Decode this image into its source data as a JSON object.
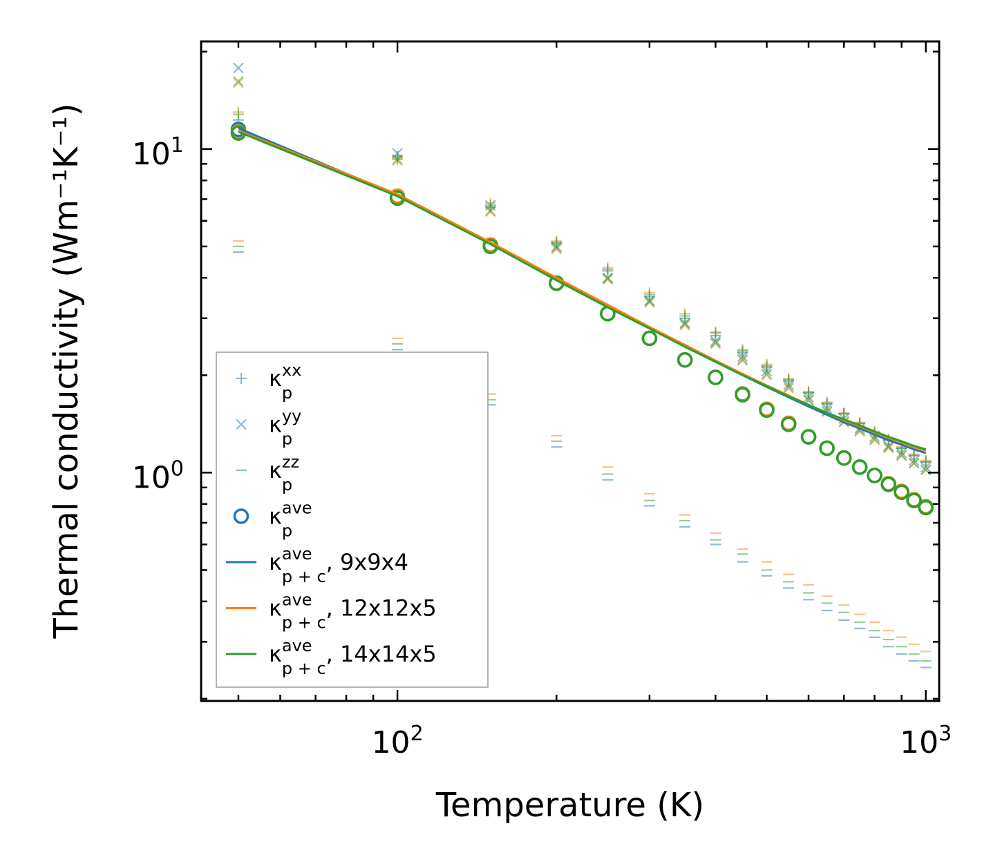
{
  "chart_data": {
    "type": "scatter",
    "title": "",
    "xlabel": "Temperature (K)",
    "ylabel": "Thermal conductivity (Wm⁻¹K⁻¹)",
    "xscale": "log",
    "yscale": "log",
    "xlim": [
      42.5,
      1060
    ],
    "ylim": [
      0.197,
      21.5
    ],
    "grid": false,
    "x_tick_labels": [
      "10",
      "10"
    ],
    "x_tick_exponents": [
      "2",
      "3"
    ],
    "y_tick_labels": [
      "10",
      "10"
    ],
    "y_tick_exponents": [
      "0",
      "1"
    ],
    "x": [
      50,
      100,
      150,
      200,
      250,
      300,
      350,
      400,
      450,
      500,
      550,
      600,
      650,
      700,
      750,
      800,
      850,
      900,
      950,
      1000
    ],
    "colors": {
      "9x9x4": "#1f77b4",
      "12x12x5": "#ff7f0e",
      "14x14x5": "#2ca02c"
    },
    "meshes": [
      {
        "name": "9x9x4",
        "color": "#1f77b4",
        "kxx": [
          12.3,
          9.5,
          6.6,
          5.1,
          4.2,
          3.5,
          3.0,
          2.65,
          2.35,
          2.12,
          1.92,
          1.76,
          1.63,
          1.52,
          1.42,
          1.33,
          1.26,
          1.19,
          1.13,
          1.08
        ],
        "kyy": [
          17.8,
          9.7,
          6.7,
          5.0,
          4.0,
          3.4,
          2.9,
          2.55,
          2.28,
          2.06,
          1.87,
          1.71,
          1.58,
          1.47,
          1.37,
          1.29,
          1.21,
          1.15,
          1.09,
          1.04
        ],
        "kzz": [
          4.8,
          2.4,
          1.62,
          1.2,
          0.95,
          0.79,
          0.68,
          0.6,
          0.53,
          0.48,
          0.44,
          0.405,
          0.375,
          0.35,
          0.33,
          0.31,
          0.29,
          0.275,
          0.262,
          0.25
        ],
        "kave": [
          11.5,
          7.1,
          5.05,
          3.85,
          3.1,
          2.6,
          2.23,
          1.97,
          1.75,
          1.57,
          1.42,
          1.29,
          1.19,
          1.11,
          1.04,
          0.98,
          0.92,
          0.87,
          0.82,
          0.78
        ],
        "kpc_ave": [
          11.6,
          7.2,
          5.1,
          3.95,
          3.25,
          2.8,
          2.45,
          2.2,
          2.0,
          1.84,
          1.71,
          1.6,
          1.51,
          1.43,
          1.37,
          1.31,
          1.26,
          1.22,
          1.18,
          1.15
        ]
      },
      {
        "name": "12x12x5",
        "color": "#ff7f0e",
        "kxx": [
          13.0,
          9.4,
          6.8,
          5.2,
          4.3,
          3.6,
          3.1,
          2.72,
          2.4,
          2.16,
          1.95,
          1.78,
          1.65,
          1.53,
          1.43,
          1.34,
          1.27,
          1.2,
          1.14,
          1.09
        ],
        "kyy": [
          16.0,
          9.2,
          6.4,
          4.9,
          3.95,
          3.35,
          2.85,
          2.5,
          2.22,
          2.0,
          1.82,
          1.67,
          1.54,
          1.43,
          1.34,
          1.26,
          1.19,
          1.13,
          1.07,
          1.02
        ],
        "kzz": [
          5.2,
          2.6,
          1.75,
          1.3,
          1.04,
          0.86,
          0.74,
          0.65,
          0.58,
          0.53,
          0.485,
          0.45,
          0.415,
          0.39,
          0.365,
          0.345,
          0.325,
          0.31,
          0.295,
          0.28
        ],
        "kave": [
          11.3,
          7.15,
          5.05,
          3.85,
          3.1,
          2.6,
          2.23,
          1.97,
          1.75,
          1.57,
          1.42,
          1.29,
          1.19,
          1.11,
          1.04,
          0.98,
          0.925,
          0.875,
          0.825,
          0.785
        ],
        "kpc_ave": [
          11.4,
          7.25,
          5.15,
          4.0,
          3.3,
          2.82,
          2.48,
          2.22,
          2.02,
          1.86,
          1.73,
          1.62,
          1.53,
          1.45,
          1.39,
          1.33,
          1.28,
          1.24,
          1.2,
          1.17
        ]
      },
      {
        "name": "14x14x5",
        "color": "#2ca02c",
        "kxx": [
          12.8,
          9.3,
          6.7,
          5.15,
          4.25,
          3.55,
          3.05,
          2.7,
          2.38,
          2.14,
          1.94,
          1.77,
          1.64,
          1.52,
          1.42,
          1.33,
          1.26,
          1.19,
          1.13,
          1.08
        ],
        "kyy": [
          16.2,
          9.3,
          6.45,
          4.95,
          3.98,
          3.38,
          2.88,
          2.52,
          2.24,
          2.02,
          1.84,
          1.68,
          1.55,
          1.44,
          1.35,
          1.27,
          1.2,
          1.13,
          1.07,
          1.02
        ],
        "kzz": [
          5.0,
          2.5,
          1.68,
          1.25,
          0.99,
          0.82,
          0.71,
          0.62,
          0.56,
          0.5,
          0.46,
          0.425,
          0.395,
          0.37,
          0.345,
          0.325,
          0.305,
          0.29,
          0.275,
          0.262
        ],
        "kave": [
          11.2,
          7.05,
          5.0,
          3.85,
          3.1,
          2.6,
          2.23,
          1.97,
          1.74,
          1.56,
          1.41,
          1.29,
          1.19,
          1.11,
          1.04,
          0.98,
          0.92,
          0.87,
          0.82,
          0.78
        ],
        "kpc_ave": [
          11.3,
          7.15,
          5.08,
          3.93,
          3.24,
          2.79,
          2.45,
          2.2,
          2.0,
          1.85,
          1.72,
          1.62,
          1.53,
          1.46,
          1.4,
          1.34,
          1.29,
          1.25,
          1.21,
          1.18
        ]
      }
    ],
    "legend": {
      "placement": "lower-left",
      "entries": [
        {
          "marker": "plus",
          "color": "#1f77b4",
          "faded": true,
          "symbol": "κ",
          "sub": "p",
          "sup": "xx",
          "suffix": ""
        },
        {
          "marker": "cross",
          "color": "#1f77b4",
          "faded": true,
          "symbol": "κ",
          "sub": "p",
          "sup": "yy",
          "suffix": ""
        },
        {
          "marker": "dash",
          "color": "#1f77b4",
          "faded": true,
          "symbol": "κ",
          "sub": "p",
          "sup": "zz",
          "suffix": ""
        },
        {
          "marker": "circle",
          "color": "#1f77b4",
          "faded": false,
          "symbol": "κ",
          "sub": "p",
          "sup": "ave",
          "suffix": ""
        },
        {
          "marker": "line",
          "color": "#1f77b4",
          "faded": false,
          "symbol": "κ",
          "sub": "p + c",
          "sup": "ave",
          "suffix": ", 9x9x4"
        },
        {
          "marker": "line",
          "color": "#ff7f0e",
          "faded": false,
          "symbol": "κ",
          "sub": "p + c",
          "sup": "ave",
          "suffix": ", 12x12x5"
        },
        {
          "marker": "line",
          "color": "#2ca02c",
          "faded": false,
          "symbol": "κ",
          "sub": "p + c",
          "sup": "ave",
          "suffix": ", 14x14x5"
        }
      ]
    }
  }
}
